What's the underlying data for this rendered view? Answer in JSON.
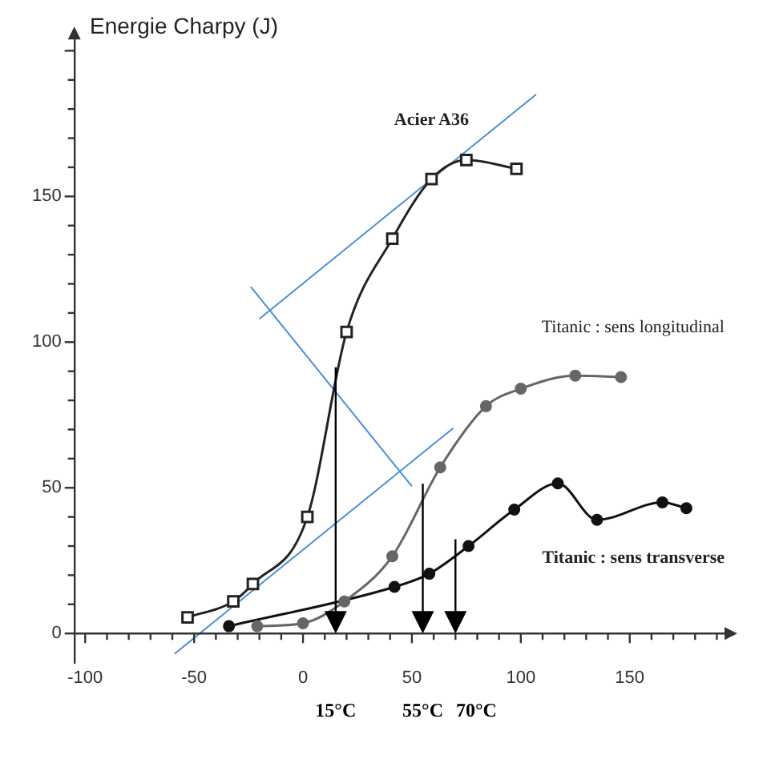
{
  "chart_data": {
    "type": "line",
    "ylabel": "Energie Charpy (J)",
    "xlim": [
      -105,
      195
    ],
    "xticks": [
      -100,
      -50,
      0,
      50,
      100,
      150
    ],
    "ylim": [
      -10,
      205
    ],
    "yticks": [
      0,
      50,
      100,
      150
    ],
    "grid": false,
    "legend": false,
    "series": [
      {
        "name": "Acier A36",
        "color": "#222222",
        "marker": "square",
        "x": [
          -53,
          -32,
          -23,
          2,
          20,
          41,
          59,
          75,
          98
        ],
        "values": [
          5.5,
          11,
          17,
          40,
          103.5,
          135.5,
          156,
          162.5,
          159.5
        ]
      },
      {
        "name": "Titanic : sens longitudinal",
        "color": "#666666",
        "marker": "circle",
        "x": [
          -21,
          0,
          19,
          41,
          63,
          84,
          100,
          125,
          146
        ],
        "values": [
          2.5,
          3.5,
          11,
          26.5,
          57,
          78,
          84,
          88.5,
          88
        ]
      },
      {
        "name": "Titanic : sens transverse",
        "color": "#111111",
        "marker": "circle",
        "x": [
          -34,
          2,
          42,
          58,
          76,
          97,
          117,
          135,
          165,
          176
        ],
        "values": [
          2.5,
          null,
          16,
          20.5,
          30,
          42.5,
          51.5,
          39,
          45,
          43
        ]
      },
      {
        "type": "line",
        "color": "#4a8fd4",
        "marker": "none",
        "x": [
          -20,
          107
        ],
        "values": [
          108,
          185
        ]
      },
      {
        "type": "line",
        "color": "#4a8fd4",
        "marker": "none",
        "x": [
          -59,
          69
        ],
        "values": [
          -7,
          70.5
        ]
      },
      {
        "type": "line",
        "color": "#4a8fd4",
        "marker": "none",
        "x": [
          -24,
          50
        ],
        "values": [
          119,
          50.5
        ]
      }
    ],
    "ref_lines": [
      {
        "axis": "x",
        "value": 15,
        "color": "#000000"
      },
      {
        "axis": "x",
        "value": 55,
        "color": "#000000"
      },
      {
        "axis": "x",
        "value": 70,
        "color": "#000000"
      }
    ],
    "annotations": [
      "15°C",
      "55°C",
      "70°C"
    ]
  }
}
